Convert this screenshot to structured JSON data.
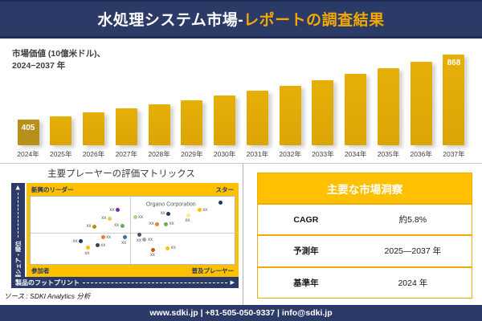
{
  "header": {
    "title_white": "水処理システム市場-",
    "title_gold": "レポートの調査結果"
  },
  "chart": {
    "title_line1": "市場価値 (10億米ドル)、",
    "title_line2": "2024−2037 年"
  },
  "chart_data": [
    {
      "type": "bar",
      "title": "市場価値 (10億米ドル)、2024−2037 年",
      "categories": [
        "2024年",
        "2025年",
        "2026年",
        "2027年",
        "2028年",
        "2029年",
        "2030年",
        "2031年",
        "2032年",
        "2033年",
        "2034年",
        "2035年",
        "2036年",
        "2037年"
      ],
      "values": [
        405,
        429,
        455,
        483,
        512,
        543,
        576,
        610,
        647,
        686,
        728,
        772,
        818,
        868
      ],
      "value_labels": {
        "2024年": "405",
        "2037年": "868"
      },
      "xlabel": "",
      "ylabel": "10億米ドル",
      "ylim": [
        0,
        900
      ],
      "grid": false
    },
    {
      "type": "scatter",
      "title": "主要プレーヤーの評価マトリックス",
      "xlabel": "製品のフットプリント",
      "ylabel": "市場シェア・順位",
      "quadrants": {
        "top_left": "新興のリーダー",
        "top_right": "スター",
        "bottom_left": "参加者",
        "bottom_right": "普及プレーヤー"
      },
      "annotation": {
        "text": "Organo Corporation",
        "x": 68.8,
        "y": 11.6
      },
      "points": [
        {
          "x": 42.6,
          "y": 19.8,
          "color": "#7030A0",
          "label": "xx",
          "side": "left"
        },
        {
          "x": 38.7,
          "y": 32.6,
          "color": "#E8C84D",
          "label": "xx",
          "side": "left"
        },
        {
          "x": 44.9,
          "y": 43.0,
          "color": "#55B54F",
          "label": "xx",
          "side": "left"
        },
        {
          "x": 31.3,
          "y": 44.2,
          "color": "#BF8F00",
          "label": "xx",
          "side": "left"
        },
        {
          "x": 51.2,
          "y": 30.5,
          "color": "#A9D18E",
          "label": "xx",
          "side": "right"
        },
        {
          "x": 67.6,
          "y": 25.5,
          "color": "#1F3864",
          "label": "xx",
          "side": "left"
        },
        {
          "x": 77.3,
          "y": 27.9,
          "color": "#FFE699",
          "label": "xx",
          "side": "below"
        },
        {
          "x": 82.8,
          "y": 19.8,
          "color": "#FFC000",
          "label": "xx",
          "side": "right"
        },
        {
          "x": 93.0,
          "y": 9.3,
          "color": "#1F3864",
          "label": "",
          "side": "none"
        },
        {
          "x": 62.1,
          "y": 40.7,
          "color": "#ED7D31",
          "label": "xx",
          "side": "left"
        },
        {
          "x": 66.4,
          "y": 40.7,
          "color": "#70AD47",
          "label": "xx",
          "side": "right"
        },
        {
          "x": 24.6,
          "y": 66.3,
          "color": "#203864",
          "label": "xx",
          "side": "left"
        },
        {
          "x": 35.5,
          "y": 60.5,
          "color": "#ED7D31",
          "label": "xx",
          "side": "right"
        },
        {
          "x": 46.1,
          "y": 60.5,
          "color": "#2E75B6",
          "label": "xx",
          "side": "below"
        },
        {
          "x": 28.1,
          "y": 75.6,
          "color": "#FFC000",
          "label": "xx",
          "side": "below"
        },
        {
          "x": 32.8,
          "y": 72.1,
          "color": "#404040",
          "label": "xx",
          "side": "right"
        },
        {
          "x": 53.5,
          "y": 57.0,
          "color": "#44546A",
          "label": "xx",
          "side": "below"
        },
        {
          "x": 55.9,
          "y": 64.0,
          "color": "#A6A6A6",
          "label": "xx",
          "side": "right"
        },
        {
          "x": 60.2,
          "y": 79.1,
          "color": "#C55A11",
          "label": "xx",
          "side": "below"
        },
        {
          "x": 67.2,
          "y": 76.7,
          "color": "#FFC000",
          "label": "xx",
          "side": "right"
        }
      ]
    }
  ],
  "matrix": {
    "title": "主要プレーヤーの評価マトリックス",
    "x_axis_label": "製品のフットプリント",
    "y_axis_label": "市場シェア・順位"
  },
  "insights": {
    "title": "主要な市場洞察",
    "rows": [
      {
        "label": "CAGR",
        "value": "約5.8%"
      },
      {
        "label": "予測年",
        "value": "2025—2037 年"
      },
      {
        "label": "基準年",
        "value": "2024 年"
      }
    ]
  },
  "source": "ソース : SDKI Analytics 分析",
  "footer": {
    "contact": "www.sdki.jp | +81-505-050-9337 | info@sdki.jp"
  },
  "icons": {
    "axis_arrow": "▶"
  },
  "colors": {
    "navy": "#2b3a67",
    "gold_band": "#FFC000",
    "gold_border": "#F2A900",
    "title_gold": "#F2A900",
    "bar": "#DCA506",
    "bar_gradient_top": "#E6AF07",
    "bar_first": "#B98F1C",
    "text_dark": "#404040",
    "quadrant_text": "#1F3864"
  }
}
